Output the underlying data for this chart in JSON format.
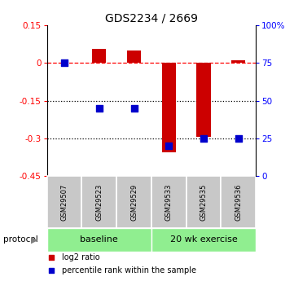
{
  "title": "GDS2234 / 2669",
  "samples": [
    "GSM29507",
    "GSM29523",
    "GSM29529",
    "GSM29533",
    "GSM29535",
    "GSM29536"
  ],
  "log2_ratio": [
    0.0,
    0.055,
    0.05,
    -0.355,
    -0.295,
    0.01
  ],
  "percentile_rank": [
    75,
    45,
    45,
    20,
    25,
    25
  ],
  "left_ylim": [
    -0.45,
    0.15
  ],
  "right_ylim": [
    0,
    100
  ],
  "left_yticks": [
    -0.45,
    -0.3,
    -0.15,
    0,
    0.15
  ],
  "right_yticks": [
    0,
    25,
    50,
    75,
    100
  ],
  "right_yticklabels": [
    "0",
    "25",
    "50",
    "75",
    "100%"
  ],
  "hlines_dotted": [
    -0.15,
    -0.3
  ],
  "hline_dashed": 0.0,
  "bar_color": "#CC0000",
  "dot_color": "#0000CC",
  "bar_width": 0.4,
  "dot_size": 28,
  "baseline_color": "#90EE90",
  "exercise_color": "#90EE90",
  "sample_box_color": "#C8C8C8",
  "legend_items": [
    "log2 ratio",
    "percentile rank within the sample"
  ],
  "baseline_label": "baseline",
  "exercise_label": "20 wk exercise",
  "protocol_label": "protocol",
  "n_baseline": 3,
  "n_exercise": 3
}
